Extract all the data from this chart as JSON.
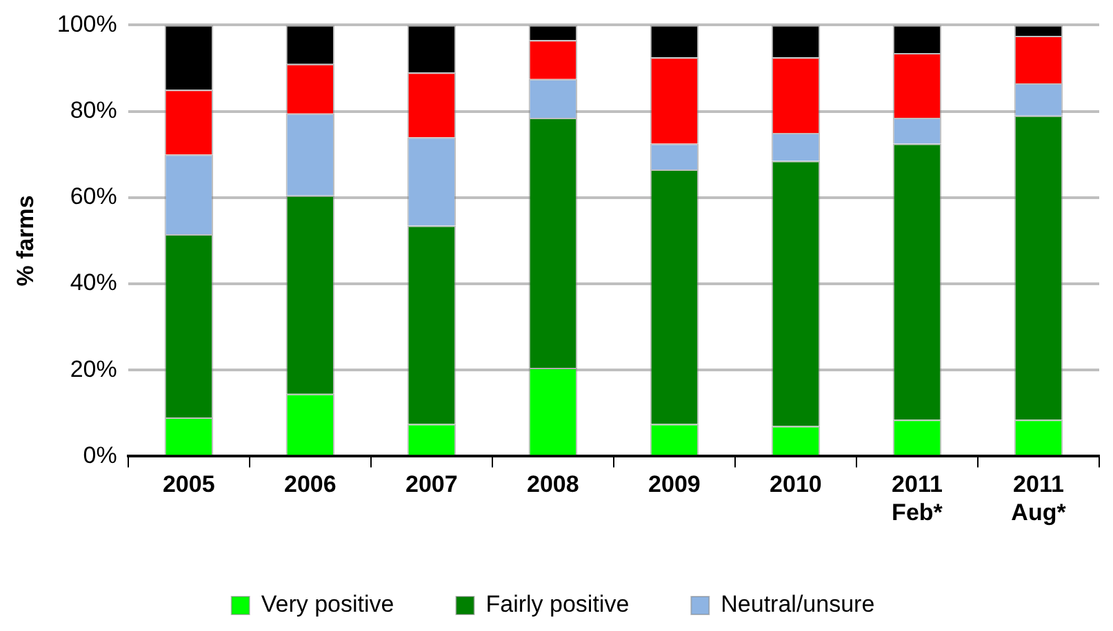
{
  "chart_data": {
    "type": "bar",
    "stacked": true,
    "ylabel": "% farms",
    "categories": [
      "2005",
      "2006",
      "2007",
      "2008",
      "2009",
      "2010",
      "2011 Feb*",
      "2011 Aug*"
    ],
    "series": [
      {
        "name": "Very positive",
        "color": "#00ff00",
        "values": [
          9,
          14.5,
          7.5,
          20.5,
          7.5,
          7,
          8.5,
          8.5
        ]
      },
      {
        "name": "Fairly positive",
        "color": "#008000",
        "values": [
          42.5,
          46,
          46,
          58,
          59,
          61.5,
          64,
          70.5
        ]
      },
      {
        "name": "Neutral/unsure",
        "color": "#8eb4e3",
        "values": [
          18.5,
          19,
          20.5,
          9,
          6,
          6.5,
          6,
          7.5
        ]
      },
      {
        "color": "#ff0000",
        "values": [
          15,
          11.5,
          15,
          9,
          20,
          17.5,
          15,
          11
        ]
      },
      {
        "color": "#000000",
        "values": [
          15,
          9,
          11,
          3.5,
          7.5,
          7.5,
          6.5,
          2.5
        ]
      }
    ],
    "ylim": [
      0,
      100
    ],
    "yticks": [
      {
        "value": 0,
        "label": "0%"
      },
      {
        "value": 20,
        "label": "20%"
      },
      {
        "value": 40,
        "label": "40%"
      },
      {
        "value": 60,
        "label": "60%"
      },
      {
        "value": 80,
        "label": "80%"
      },
      {
        "value": 100,
        "label": "100%"
      }
    ],
    "grid": "y",
    "legend": "bottom"
  }
}
